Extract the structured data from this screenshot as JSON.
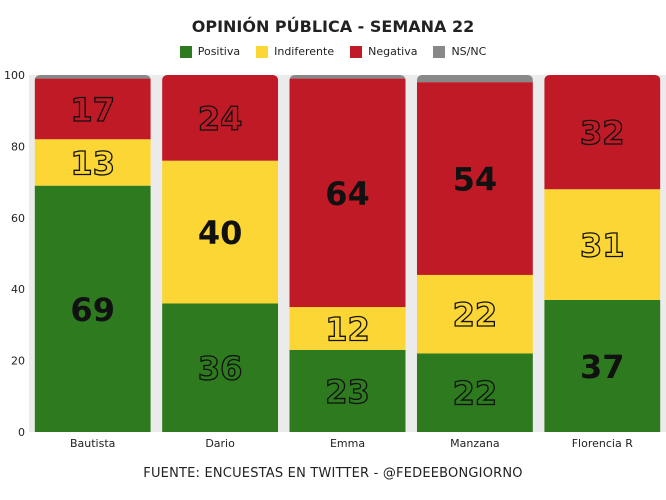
{
  "chart_data": {
    "type": "bar",
    "stacked": true,
    "title": "OPINIÓN PÚBLICA - SEMANA 22",
    "categories": [
      "Bautista",
      "Dario",
      "Emma",
      "Manzana",
      "Florencia R"
    ],
    "series": [
      {
        "name": "Positiva",
        "color": "#2d7a1f",
        "values": [
          69,
          36,
          23,
          22,
          37
        ]
      },
      {
        "name": "Indiferente",
        "color": "#fbd634",
        "values": [
          13,
          40,
          12,
          22,
          31
        ]
      },
      {
        "name": "Negativa",
        "color": "#c01a26",
        "values": [
          17,
          24,
          64,
          54,
          32
        ]
      },
      {
        "name": "NS/NC",
        "color": "#888888",
        "values": [
          1,
          0,
          1,
          2,
          0
        ]
      }
    ],
    "ylim": [
      0,
      100
    ],
    "yticks": [
      0,
      20,
      40,
      60,
      80,
      100
    ],
    "grid": false,
    "legend_position": "top",
    "label_style": {
      "Positiva": [
        "solid",
        "outline",
        "outline",
        "outline",
        "solid"
      ],
      "Indiferente": [
        "outline",
        "solid",
        "outline",
        "outline",
        "outline"
      ],
      "Negativa": [
        "outline",
        "outline",
        "solid",
        "solid",
        "outline"
      ]
    },
    "source": "FUENTE: ENCUESTAS EN TWITTER - @FEDEEBONGIORNO"
  }
}
